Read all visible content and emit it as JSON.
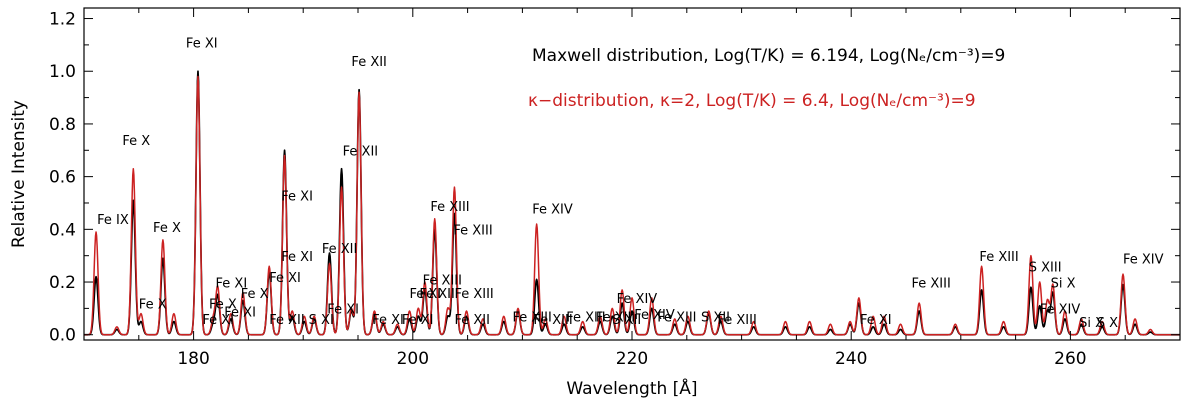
{
  "chart_data": {
    "type": "line",
    "xlabel": "Wavelength [Å]",
    "ylabel": "Relative Intensity",
    "xlim": [
      170,
      270
    ],
    "ylim": [
      -0.02,
      1.24
    ],
    "x_ticks": [
      180,
      200,
      220,
      240,
      260
    ],
    "y_ticks": [
      0.0,
      0.2,
      0.4,
      0.6,
      0.8,
      1.0,
      1.2
    ],
    "x_tick_labels": [
      "180",
      "200",
      "220",
      "240",
      "260"
    ],
    "y_tick_labels": [
      "0.0",
      "0.2",
      "0.4",
      "0.6",
      "0.8",
      "1.0",
      "1.2"
    ],
    "legend": [
      {
        "text": "Maxwell distribution,  Log(T/K) = 6.194,  Log(Nₑ/cm⁻³)=9",
        "color": "#000000"
      },
      {
        "text": "κ−distribution, κ=2,  Log(T/K) = 6.4,  Log(Nₑ/cm⁻³)=9",
        "color": "#cc2222"
      }
    ],
    "line_width_sigma": 0.18,
    "series": [
      {
        "color": "#000000",
        "peaks": [
          [
            171.1,
            0.22
          ],
          [
            173.0,
            0.02
          ],
          [
            174.5,
            0.51
          ],
          [
            175.2,
            0.05
          ],
          [
            177.2,
            0.29
          ],
          [
            178.2,
            0.05
          ],
          [
            180.4,
            1.0
          ],
          [
            181.8,
            0.04
          ],
          [
            182.2,
            0.15
          ],
          [
            183.4,
            0.06
          ],
          [
            184.5,
            0.13
          ],
          [
            186.9,
            0.24
          ],
          [
            188.3,
            0.7
          ],
          [
            189.0,
            0.07
          ],
          [
            190.1,
            0.05
          ],
          [
            191.0,
            0.06
          ],
          [
            192.4,
            0.31
          ],
          [
            193.5,
            0.63
          ],
          [
            194.4,
            0.09
          ],
          [
            195.1,
            0.93
          ],
          [
            196.5,
            0.08
          ],
          [
            197.3,
            0.04
          ],
          [
            198.6,
            0.03
          ],
          [
            199.7,
            0.06
          ],
          [
            200.5,
            0.07
          ],
          [
            201.1,
            0.17
          ],
          [
            202.0,
            0.4
          ],
          [
            203.2,
            0.07
          ],
          [
            203.8,
            0.46
          ],
          [
            204.9,
            0.07
          ],
          [
            206.4,
            0.04
          ],
          [
            208.3,
            0.05
          ],
          [
            209.6,
            0.09
          ],
          [
            211.3,
            0.21
          ],
          [
            212.1,
            0.04
          ],
          [
            213.8,
            0.04
          ],
          [
            215.5,
            0.03
          ],
          [
            217.1,
            0.05
          ],
          [
            218.2,
            0.07
          ],
          [
            219.1,
            0.12
          ],
          [
            220.0,
            0.09
          ],
          [
            221.8,
            0.1
          ],
          [
            223.9,
            0.04
          ],
          [
            225.1,
            0.05
          ],
          [
            227.0,
            0.08
          ],
          [
            228.1,
            0.05
          ],
          [
            231.1,
            0.03
          ],
          [
            234.0,
            0.03
          ],
          [
            236.2,
            0.03
          ],
          [
            238.1,
            0.02
          ],
          [
            239.9,
            0.04
          ],
          [
            240.7,
            0.12
          ],
          [
            242.0,
            0.03
          ],
          [
            243.0,
            0.04
          ],
          [
            244.5,
            0.02
          ],
          [
            246.2,
            0.09
          ],
          [
            249.5,
            0.03
          ],
          [
            251.9,
            0.17
          ],
          [
            253.9,
            0.03
          ],
          [
            256.4,
            0.18
          ],
          [
            257.2,
            0.11
          ],
          [
            257.9,
            0.09
          ],
          [
            258.4,
            0.16
          ],
          [
            259.5,
            0.06
          ],
          [
            261.0,
            0.04
          ],
          [
            262.9,
            0.03
          ],
          [
            264.8,
            0.19
          ],
          [
            265.9,
            0.04
          ],
          [
            267.3,
            0.01
          ]
        ]
      },
      {
        "color": "#cc2222",
        "peaks": [
          [
            171.1,
            0.39
          ],
          [
            173.0,
            0.03
          ],
          [
            174.5,
            0.63
          ],
          [
            175.2,
            0.08
          ],
          [
            177.2,
            0.36
          ],
          [
            178.2,
            0.08
          ],
          [
            180.4,
            0.98
          ],
          [
            181.8,
            0.06
          ],
          [
            182.2,
            0.18
          ],
          [
            183.4,
            0.08
          ],
          [
            184.5,
            0.16
          ],
          [
            186.9,
            0.26
          ],
          [
            188.3,
            0.68
          ],
          [
            189.0,
            0.09
          ],
          [
            190.1,
            0.07
          ],
          [
            191.0,
            0.07
          ],
          [
            192.4,
            0.27
          ],
          [
            193.5,
            0.56
          ],
          [
            194.4,
            0.1
          ],
          [
            195.1,
            0.92
          ],
          [
            196.5,
            0.09
          ],
          [
            197.3,
            0.05
          ],
          [
            198.6,
            0.04
          ],
          [
            199.7,
            0.09
          ],
          [
            200.5,
            0.1
          ],
          [
            201.1,
            0.2
          ],
          [
            202.0,
            0.44
          ],
          [
            203.2,
            0.1
          ],
          [
            203.8,
            0.56
          ],
          [
            204.9,
            0.09
          ],
          [
            206.4,
            0.06
          ],
          [
            208.3,
            0.07
          ],
          [
            209.6,
            0.1
          ],
          [
            211.3,
            0.42
          ],
          [
            212.1,
            0.06
          ],
          [
            213.8,
            0.07
          ],
          [
            215.5,
            0.05
          ],
          [
            217.1,
            0.07
          ],
          [
            218.2,
            0.1
          ],
          [
            219.1,
            0.17
          ],
          [
            220.0,
            0.14
          ],
          [
            221.8,
            0.14
          ],
          [
            223.9,
            0.06
          ],
          [
            225.1,
            0.07
          ],
          [
            227.0,
            0.09
          ],
          [
            228.1,
            0.07
          ],
          [
            231.1,
            0.05
          ],
          [
            234.0,
            0.05
          ],
          [
            236.2,
            0.05
          ],
          [
            238.1,
            0.04
          ],
          [
            239.9,
            0.05
          ],
          [
            240.7,
            0.14
          ],
          [
            242.0,
            0.07
          ],
          [
            243.0,
            0.07
          ],
          [
            244.5,
            0.04
          ],
          [
            246.2,
            0.12
          ],
          [
            249.5,
            0.04
          ],
          [
            251.9,
            0.26
          ],
          [
            253.9,
            0.05
          ],
          [
            256.4,
            0.3
          ],
          [
            257.2,
            0.2
          ],
          [
            257.9,
            0.13
          ],
          [
            258.4,
            0.19
          ],
          [
            259.5,
            0.09
          ],
          [
            261.0,
            0.06
          ],
          [
            262.9,
            0.05
          ],
          [
            264.8,
            0.23
          ],
          [
            265.9,
            0.06
          ],
          [
            267.3,
            0.02
          ]
        ]
      }
    ],
    "annotations": [
      {
        "text": "Fe IX",
        "x": 171.2,
        "y": 0.42
      },
      {
        "text": "Fe X",
        "x": 173.5,
        "y": 0.72
      },
      {
        "text": "Fe X",
        "x": 176.3,
        "y": 0.39
      },
      {
        "text": "Fe X",
        "x": 175.0,
        "y": 0.1
      },
      {
        "text": "Fe XI",
        "x": 179.3,
        "y": 1.09
      },
      {
        "text": "Fe XI",
        "x": 182.0,
        "y": 0.18
      },
      {
        "text": "Fe X",
        "x": 181.4,
        "y": 0.1
      },
      {
        "text": "Fe XI",
        "x": 180.8,
        "y": 0.04
      },
      {
        "text": "Fe XI",
        "x": 182.8,
        "y": 0.07
      },
      {
        "text": "Fe X",
        "x": 184.3,
        "y": 0.14
      },
      {
        "text": "Fe XI",
        "x": 186.9,
        "y": 0.2
      },
      {
        "text": "Fe XI",
        "x": 188.0,
        "y": 0.51
      },
      {
        "text": "Fe XI",
        "x": 188.0,
        "y": 0.28
      },
      {
        "text": "Fe XII",
        "x": 186.9,
        "y": 0.04
      },
      {
        "text": "S XI",
        "x": 190.5,
        "y": 0.04
      },
      {
        "text": "Fe XII",
        "x": 191.7,
        "y": 0.31
      },
      {
        "text": "Fe XII",
        "x": 193.6,
        "y": 0.68
      },
      {
        "text": "Fe XI",
        "x": 192.2,
        "y": 0.08
      },
      {
        "text": "Fe XII",
        "x": 194.4,
        "y": 1.02
      },
      {
        "text": "Fe XI",
        "x": 196.3,
        "y": 0.04
      },
      {
        "text": "Fe XI",
        "x": 199.0,
        "y": 0.04
      },
      {
        "text": "Fe XI",
        "x": 199.7,
        "y": 0.14
      },
      {
        "text": "Fe XII",
        "x": 200.6,
        "y": 0.14
      },
      {
        "text": "Fe XIII",
        "x": 201.6,
        "y": 0.47
      },
      {
        "text": "Fe XIII",
        "x": 203.7,
        "y": 0.38
      },
      {
        "text": "Fe XIII",
        "x": 200.9,
        "y": 0.19
      },
      {
        "text": "Fe XIII",
        "x": 203.8,
        "y": 0.14
      },
      {
        "text": "Fe XII",
        "x": 203.8,
        "y": 0.04
      },
      {
        "text": "Fe XIV",
        "x": 210.9,
        "y": 0.46
      },
      {
        "text": "Fe XIII",
        "x": 209.1,
        "y": 0.05
      },
      {
        "text": "Fe XIII",
        "x": 211.0,
        "y": 0.04
      },
      {
        "text": "Fe XIII",
        "x": 214.0,
        "y": 0.05
      },
      {
        "text": "Fe XIII",
        "x": 216.7,
        "y": 0.05
      },
      {
        "text": "Fe XIV",
        "x": 218.6,
        "y": 0.12
      },
      {
        "text": "Fe XIV",
        "x": 220.2,
        "y": 0.06
      },
      {
        "text": "S XII",
        "x": 218.2,
        "y": 0.04
      },
      {
        "text": "Fe XIII",
        "x": 222.3,
        "y": 0.05
      },
      {
        "text": "S XII",
        "x": 226.3,
        "y": 0.05
      },
      {
        "text": "Fe XIII",
        "x": 227.8,
        "y": 0.04
      },
      {
        "text": "Fe XI",
        "x": 240.8,
        "y": 0.04
      },
      {
        "text": "Fe XIII",
        "x": 245.5,
        "y": 0.18
      },
      {
        "text": "Fe XIII",
        "x": 251.7,
        "y": 0.28
      },
      {
        "text": "S XIII",
        "x": 256.2,
        "y": 0.24
      },
      {
        "text": "Si X",
        "x": 258.2,
        "y": 0.18
      },
      {
        "text": "Fe XIV",
        "x": 257.2,
        "y": 0.08
      },
      {
        "text": "Si X",
        "x": 260.8,
        "y": 0.03
      },
      {
        "text": "S X",
        "x": 262.4,
        "y": 0.03
      },
      {
        "text": "Fe XIV",
        "x": 264.8,
        "y": 0.27
      }
    ]
  }
}
